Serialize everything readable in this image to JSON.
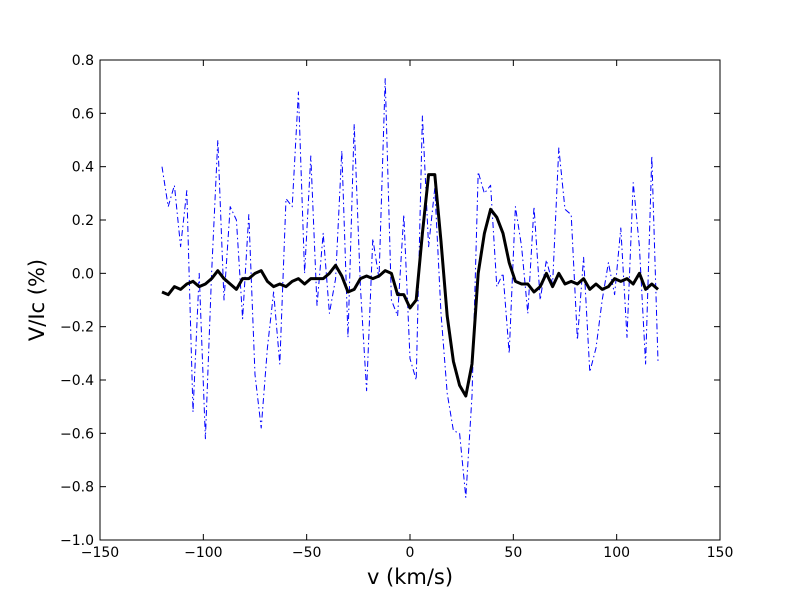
{
  "chart_data": {
    "type": "line",
    "xlabel": "v (km/s)",
    "ylabel": "V/Ic (%)",
    "xlim": [
      -150,
      150
    ],
    "xticks": [
      {
        "value": -150,
        "label": "−150"
      },
      {
        "value": -100,
        "label": "−100"
      },
      {
        "value": -50,
        "label": "−50"
      },
      0,
      50,
      100,
      150
    ],
    "ylim": [
      -1.0,
      0.8
    ],
    "yticks": [
      {
        "value": -1.0,
        "label": "−1.0"
      },
      {
        "value": -0.8,
        "label": "−0.8"
      },
      {
        "value": -0.6,
        "label": "−0.6"
      },
      {
        "value": -0.4,
        "label": "−0.4"
      },
      {
        "value": -0.2,
        "label": "−0.2"
      },
      {
        "value": 0.0,
        "label": "0.0"
      },
      {
        "value": 0.2,
        "label": "0.2"
      },
      {
        "value": 0.4,
        "label": "0.4"
      },
      {
        "value": 0.6,
        "label": "0.6"
      },
      {
        "value": 0.8,
        "label": "0.8"
      }
    ],
    "grid": false,
    "x": [
      -120,
      -117,
      -114,
      -111,
      -108,
      -105,
      -102,
      -99,
      -96,
      -93,
      -90,
      -87,
      -84,
      -81,
      -78,
      -75,
      -72,
      -69,
      -66,
      -63,
      -60,
      -57,
      -54,
      -51,
      -48,
      -45,
      -42,
      -39,
      -36,
      -33,
      -30,
      -27,
      -24,
      -21,
      -18,
      -15,
      -12,
      -9,
      -6,
      -3,
      0,
      3,
      6,
      9,
      12,
      15,
      18,
      21,
      24,
      27,
      30,
      33,
      36,
      39,
      42,
      45,
      48,
      51,
      54,
      57,
      60,
      63,
      66,
      69,
      72,
      75,
      78,
      81,
      84,
      87,
      90,
      93,
      96,
      99,
      102,
      105,
      108,
      111,
      114,
      117,
      120
    ],
    "series": [
      {
        "color": "#0000ff",
        "style": "dashdot",
        "width": 1,
        "values": [
          0.4,
          0.25,
          0.33,
          0.1,
          0.31,
          -0.52,
          0.0,
          -0.62,
          0.0,
          0.5,
          -0.1,
          0.25,
          0.2,
          -0.17,
          0.22,
          -0.38,
          -0.58,
          -0.28,
          -0.07,
          -0.34,
          0.28,
          0.25,
          0.68,
          0.0,
          0.44,
          -0.12,
          0.15,
          -0.15,
          -0.02,
          0.46,
          -0.24,
          0.56,
          -0.05,
          -0.44,
          0.13,
          -0.02,
          0.73,
          -0.1,
          -0.16,
          0.22,
          -0.32,
          -0.4,
          0.59,
          0.1,
          0.32,
          -0.15,
          -0.45,
          -0.59,
          -0.6,
          -0.84,
          -0.46,
          0.38,
          0.3,
          0.33,
          -0.05,
          0.0,
          -0.3,
          0.25,
          0.1,
          -0.15,
          0.25,
          -0.1,
          0.05,
          -0.04,
          0.47,
          0.24,
          0.22,
          -0.25,
          0.06,
          -0.37,
          -0.28,
          -0.1,
          0.04,
          -0.08,
          0.17,
          -0.24,
          0.34,
          0.1,
          -0.34,
          0.44,
          -0.33
        ]
      },
      {
        "color": "#000000",
        "style": "solid",
        "width": 3,
        "values": [
          -0.07,
          -0.08,
          -0.05,
          -0.06,
          -0.04,
          -0.03,
          -0.05,
          -0.04,
          -0.02,
          0.01,
          -0.02,
          -0.04,
          -0.06,
          -0.02,
          -0.02,
          0.0,
          0.01,
          -0.03,
          -0.05,
          -0.04,
          -0.05,
          -0.03,
          -0.02,
          -0.04,
          -0.02,
          -0.02,
          -0.02,
          0.0,
          0.03,
          -0.01,
          -0.07,
          -0.06,
          -0.02,
          -0.01,
          -0.02,
          -0.01,
          0.01,
          0.0,
          -0.08,
          -0.08,
          -0.13,
          -0.1,
          0.15,
          0.37,
          0.37,
          0.12,
          -0.16,
          -0.33,
          -0.42,
          -0.46,
          -0.34,
          0.0,
          0.15,
          0.24,
          0.21,
          0.15,
          0.04,
          -0.03,
          -0.04,
          -0.04,
          -0.07,
          -0.05,
          0.0,
          -0.05,
          0.0,
          -0.04,
          -0.03,
          -0.04,
          -0.02,
          -0.06,
          -0.04,
          -0.06,
          -0.05,
          -0.02,
          -0.03,
          -0.02,
          -0.04,
          0.0,
          -0.06,
          -0.04,
          -0.06
        ]
      }
    ]
  }
}
